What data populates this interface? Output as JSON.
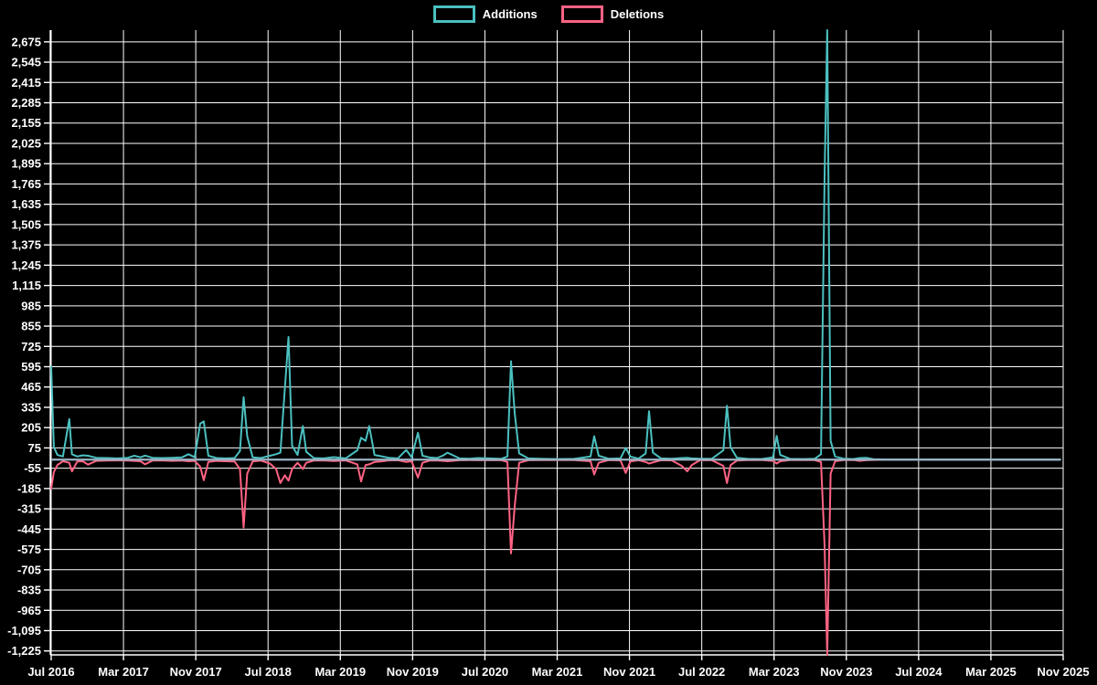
{
  "chart": {
    "background_color": "#000000",
    "grid_color": "#ffffff",
    "text_color": "#ffffff",
    "zero_line_color": "#9ab4c4",
    "legend": {
      "items": [
        {
          "label": "Additions",
          "color": "#4bc0c0"
        },
        {
          "label": "Deletions",
          "color": "#ff6384"
        }
      ]
    }
  },
  "chart_data": {
    "type": "line",
    "title": "",
    "xlabel": "",
    "ylabel": "",
    "grid": true,
    "legend_position": "top-center",
    "x_axis": {
      "start": "2016-07",
      "end": "2025-11",
      "tick_interval_months": 8,
      "tick_labels": [
        "Jul 2016",
        "Mar 2017",
        "Nov 2017",
        "Jul 2018",
        "Mar 2019",
        "Nov 2019",
        "Jul 2020",
        "Mar 2021",
        "Nov 2021",
        "Jul 2022",
        "Mar 2023",
        "Nov 2023",
        "Jul 2024",
        "Mar 2025",
        "Nov 2025"
      ]
    },
    "y_axis": {
      "min": -1250,
      "max": 2750,
      "tick_step": 130,
      "tick_values": [
        2675,
        2545,
        2415,
        2285,
        2155,
        2025,
        1895,
        1765,
        1635,
        1505,
        1375,
        1245,
        1115,
        985,
        855,
        725,
        595,
        465,
        335,
        205,
        75,
        -55,
        -185,
        -315,
        -445,
        -575,
        -705,
        -835,
        -965,
        -1095,
        -1225
      ],
      "tick_labels": [
        "2,675",
        "2,545",
        "2,415",
        "2,285",
        "2,155",
        "2,025",
        "1,895",
        "1,765",
        "1,635",
        "1,505",
        "1,375",
        "1,245",
        "1,115",
        "985",
        "855",
        "725",
        "595",
        "465",
        "335",
        "205",
        "75",
        "-55",
        "-185",
        "-315",
        "-445",
        "-575",
        "-705",
        "-835",
        "-965",
        "-1,095",
        "-1,225"
      ]
    },
    "series": [
      {
        "name": "Additions",
        "color": "#4bc0c0",
        "value_column": "additions"
      },
      {
        "name": "Deletions",
        "color": "#ff6384",
        "value_column": "deletions"
      }
    ],
    "columns": [
      "date",
      "additions",
      "deletions"
    ],
    "rows": [
      [
        "2016-07-01",
        595,
        -185
      ],
      [
        "2016-07-10",
        80,
        -80
      ],
      [
        "2016-07-22",
        30,
        -35
      ],
      [
        "2016-08-10",
        20,
        -10
      ],
      [
        "2016-09-01",
        260,
        -20
      ],
      [
        "2016-09-10",
        35,
        -75
      ],
      [
        "2016-09-28",
        20,
        -12
      ],
      [
        "2016-10-16",
        28,
        -10
      ],
      [
        "2016-11-03",
        25,
        -32
      ],
      [
        "2016-12-01",
        12,
        -8
      ],
      [
        "2017-01-07",
        10,
        -6
      ],
      [
        "2017-02-12",
        8,
        -5
      ],
      [
        "2017-03-16",
        12,
        -6
      ],
      [
        "2017-04-07",
        25,
        -8
      ],
      [
        "2017-04-28",
        15,
        -10
      ],
      [
        "2017-05-13",
        26,
        -30
      ],
      [
        "2017-06-07",
        12,
        -6
      ],
      [
        "2017-07-07",
        10,
        -5
      ],
      [
        "2017-08-13",
        12,
        -8
      ],
      [
        "2017-09-16",
        15,
        -6
      ],
      [
        "2017-10-07",
        35,
        -10
      ],
      [
        "2017-10-28",
        15,
        -8
      ],
      [
        "2017-11-16",
        230,
        -45
      ],
      [
        "2017-11-28",
        245,
        -132
      ],
      [
        "2017-12-13",
        25,
        -15
      ],
      [
        "2018-01-10",
        10,
        -8
      ],
      [
        "2018-02-10",
        8,
        -10
      ],
      [
        "2018-03-10",
        10,
        -12
      ],
      [
        "2018-03-28",
        55,
        -60
      ],
      [
        "2018-04-10",
        400,
        -435
      ],
      [
        "2018-04-22",
        150,
        -90
      ],
      [
        "2018-05-10",
        15,
        -12
      ],
      [
        "2018-06-07",
        10,
        -6
      ],
      [
        "2018-07-07",
        25,
        -25
      ],
      [
        "2018-07-28",
        35,
        -60
      ],
      [
        "2018-08-12",
        45,
        -150
      ],
      [
        "2018-08-27",
        455,
        -100
      ],
      [
        "2018-09-09",
        785,
        -135
      ],
      [
        "2018-09-21",
        90,
        -60
      ],
      [
        "2018-10-09",
        30,
        -20
      ],
      [
        "2018-10-27",
        215,
        -60
      ],
      [
        "2018-11-08",
        50,
        -20
      ],
      [
        "2018-12-03",
        10,
        -6
      ],
      [
        "2019-01-06",
        8,
        -5
      ],
      [
        "2019-02-09",
        16,
        -9
      ],
      [
        "2019-03-19",
        8,
        -5
      ],
      [
        "2019-04-28",
        60,
        -30
      ],
      [
        "2019-05-10",
        140,
        -140
      ],
      [
        "2019-05-25",
        120,
        -35
      ],
      [
        "2019-06-07",
        215,
        -30
      ],
      [
        "2019-06-25",
        30,
        -15
      ],
      [
        "2019-07-16",
        22,
        -12
      ],
      [
        "2019-08-12",
        12,
        -5
      ],
      [
        "2019-09-12",
        8,
        -4
      ],
      [
        "2019-10-10",
        62,
        -15
      ],
      [
        "2019-10-28",
        15,
        -10
      ],
      [
        "2019-11-19",
        172,
        -115
      ],
      [
        "2019-12-04",
        25,
        -20
      ],
      [
        "2019-12-28",
        14,
        -6
      ],
      [
        "2020-01-22",
        10,
        -5
      ],
      [
        "2020-02-12",
        26,
        -8
      ],
      [
        "2020-02-27",
        45,
        -10
      ],
      [
        "2020-03-13",
        30,
        -8
      ],
      [
        "2020-04-07",
        8,
        -4
      ],
      [
        "2020-05-10",
        6,
        -3
      ],
      [
        "2020-06-07",
        10,
        -4
      ],
      [
        "2020-07-19",
        8,
        -4
      ],
      [
        "2020-08-25",
        5,
        -3
      ],
      [
        "2020-09-16",
        20,
        -15
      ],
      [
        "2020-09-28",
        630,
        -600
      ],
      [
        "2020-10-10",
        300,
        -300
      ],
      [
        "2020-10-25",
        40,
        -20
      ],
      [
        "2020-11-25",
        8,
        -4
      ],
      [
        "2021-01-13",
        5,
        -3
      ],
      [
        "2021-03-04",
        4,
        -2
      ],
      [
        "2021-04-28",
        5,
        -3
      ],
      [
        "2021-06-22",
        20,
        -10
      ],
      [
        "2021-07-04",
        150,
        -95
      ],
      [
        "2021-07-19",
        25,
        -20
      ],
      [
        "2021-08-22",
        6,
        -3
      ],
      [
        "2021-10-01",
        8,
        -5
      ],
      [
        "2021-10-19",
        75,
        -85
      ],
      [
        "2021-11-04",
        20,
        -12
      ],
      [
        "2021-12-01",
        6,
        -4
      ],
      [
        "2021-12-25",
        40,
        -15
      ],
      [
        "2022-01-06",
        310,
        -25
      ],
      [
        "2022-01-19",
        45,
        -18
      ],
      [
        "2022-02-16",
        8,
        -4
      ],
      [
        "2022-03-22",
        6,
        -5
      ],
      [
        "2022-04-25",
        10,
        -40
      ],
      [
        "2022-05-13",
        12,
        -75
      ],
      [
        "2022-05-28",
        8,
        -35
      ],
      [
        "2022-06-25",
        6,
        -4
      ],
      [
        "2022-08-04",
        5,
        -3
      ],
      [
        "2022-09-13",
        60,
        -40
      ],
      [
        "2022-09-25",
        345,
        -150
      ],
      [
        "2022-10-07",
        80,
        -35
      ],
      [
        "2022-10-28",
        12,
        -6
      ],
      [
        "2022-12-04",
        5,
        -3
      ],
      [
        "2023-01-19",
        4,
        -2
      ],
      [
        "2023-02-28",
        15,
        -8
      ],
      [
        "2023-03-10",
        152,
        -25
      ],
      [
        "2023-03-22",
        30,
        -10
      ],
      [
        "2023-04-25",
        5,
        -3
      ],
      [
        "2023-06-07",
        4,
        -2
      ],
      [
        "2023-07-16",
        5,
        -3
      ],
      [
        "2023-08-07",
        35,
        -15
      ],
      [
        "2023-08-19",
        1815,
        -550
      ],
      [
        "2023-08-28",
        2750,
        -1250
      ],
      [
        "2023-09-09",
        120,
        -90
      ],
      [
        "2023-09-24",
        20,
        -10
      ],
      [
        "2023-10-22",
        6,
        -3
      ],
      [
        "2023-11-25",
        4,
        -2
      ],
      [
        "2023-12-16",
        10,
        -8
      ],
      [
        "2024-01-07",
        12,
        -4
      ],
      [
        "2024-02-01",
        3,
        -2
      ],
      [
        "2024-03-25",
        0,
        0
      ],
      [
        "2024-06-10",
        0,
        0
      ],
      [
        "2024-09-10",
        0,
        0
      ],
      [
        "2024-12-13",
        0,
        0
      ],
      [
        "2025-03-13",
        0,
        0
      ],
      [
        "2025-06-13",
        0,
        0
      ],
      [
        "2025-09-01",
        0,
        0
      ],
      [
        "2025-10-22",
        0,
        0
      ]
    ]
  }
}
